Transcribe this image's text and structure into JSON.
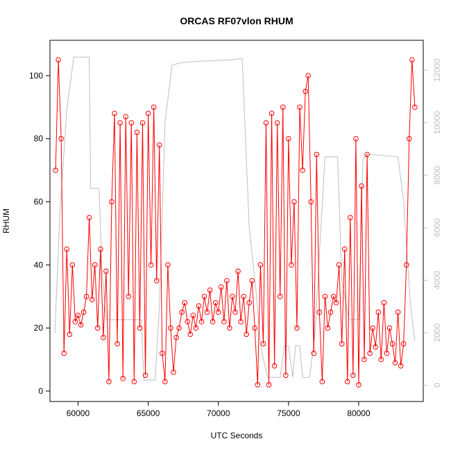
{
  "chart_data": {
    "type": "line",
    "title": "ORCAS RF07vlon RHUM",
    "x_label": "UTC Seconds",
    "y_label": "RHUM",
    "xlim": [
      58000,
      84600
    ],
    "xticks": [
      60000,
      65000,
      70000,
      75000,
      80000
    ],
    "ylim": [
      -3.3,
      111.2
    ],
    "yticks": [
      0,
      20,
      40,
      60,
      80,
      100
    ],
    "y2lim": [
      -620,
      13140
    ],
    "y2ticks": [
      0,
      2000,
      4000,
      6000,
      8000,
      10000,
      12000
    ],
    "series": [
      {
        "color": "#ff0000",
        "markers": true,
        "x": [
          58400,
          58600,
          58800,
          59000,
          59200,
          59400,
          59600,
          59800,
          60000,
          60200,
          60400,
          60600,
          60800,
          61000,
          61200,
          61400,
          61600,
          61800,
          62000,
          62200,
          62400,
          62600,
          62800,
          63000,
          63200,
          63400,
          63600,
          63800,
          64000,
          64200,
          64400,
          64600,
          64800,
          65000,
          65200,
          65400,
          65600,
          65800,
          66000,
          66200,
          66400,
          66600,
          66800,
          67000,
          67200,
          67400,
          67600,
          67800,
          68000,
          68200,
          68400,
          68600,
          68800,
          69000,
          69200,
          69400,
          69600,
          69800,
          70000,
          70200,
          70400,
          70600,
          70800,
          71000,
          71200,
          71400,
          71600,
          71800,
          72000,
          72200,
          72400,
          72600,
          72800,
          73000,
          73200,
          73400,
          73600,
          73800,
          74000,
          74200,
          74400,
          74600,
          74800,
          75000,
          75200,
          75400,
          75600,
          75800,
          76000,
          76200,
          76400,
          76600,
          76800,
          77000,
          77200,
          77400,
          77600,
          77800,
          78000,
          78200,
          78400,
          78600,
          78800,
          79000,
          79200,
          79400,
          79600,
          79800,
          80000,
          80200,
          80400,
          80600,
          80800,
          81000,
          81200,
          81400,
          81600,
          81800,
          82000,
          82200,
          82400,
          82600,
          82800,
          83000,
          83200,
          83400,
          83600,
          83800,
          84000
        ],
        "values": [
          70,
          105,
          80,
          12,
          45,
          18,
          40,
          22,
          24,
          21,
          25,
          30,
          55,
          29,
          40,
          20,
          45,
          17,
          38,
          3,
          60,
          88,
          15,
          85,
          4,
          87,
          30,
          85,
          3,
          82,
          20,
          85,
          5,
          88,
          40,
          90,
          35,
          78,
          12,
          3,
          40,
          20,
          6,
          17,
          20,
          25,
          28,
          22,
          18,
          24,
          20,
          27,
          22,
          30,
          25,
          32,
          22,
          28,
          25,
          33,
          22,
          35,
          20,
          30,
          25,
          38,
          22,
          30,
          18,
          28,
          35,
          20,
          2,
          40,
          15,
          85,
          2,
          88,
          8,
          85,
          30,
          90,
          5,
          80,
          40,
          60,
          20,
          90,
          70,
          95,
          100,
          60,
          12,
          75,
          25,
          3,
          30,
          20,
          25,
          30,
          28,
          40,
          15,
          45,
          3,
          55,
          5,
          80,
          2,
          65,
          10,
          75,
          12,
          20,
          14,
          25,
          10,
          28,
          12,
          20,
          15,
          9,
          25,
          8,
          15,
          40,
          80,
          105,
          90
        ]
      },
      {
        "color": "#bebebe",
        "axis": "y2",
        "markers": false,
        "x": [
          58350,
          58700,
          59200,
          59700,
          60800,
          60900,
          61500,
          61700,
          62000,
          62500,
          64500,
          64700,
          65500,
          65800,
          66200,
          66700,
          67500,
          69000,
          71000,
          71700,
          72200,
          72700,
          73000,
          73500,
          74400,
          74700,
          75000,
          75300,
          75500,
          75800,
          76000,
          76500,
          76900,
          77200,
          77600,
          78500,
          78800,
          79300,
          80000,
          80300,
          80600,
          82800,
          83200,
          83700,
          84000
        ],
        "values": [
          2000,
          6500,
          10500,
          12500,
          12500,
          7500,
          7500,
          4500,
          2500,
          2500,
          2500,
          200,
          200,
          3000,
          10000,
          12200,
          12300,
          12350,
          12400,
          12450,
          6000,
          3500,
          1500,
          300,
          300,
          1500,
          1500,
          300,
          1500,
          1500,
          300,
          300,
          2000,
          5000,
          8700,
          8700,
          4000,
          2500,
          2500,
          8600,
          8800,
          8700,
          7000,
          3000,
          1700
        ]
      }
    ]
  }
}
